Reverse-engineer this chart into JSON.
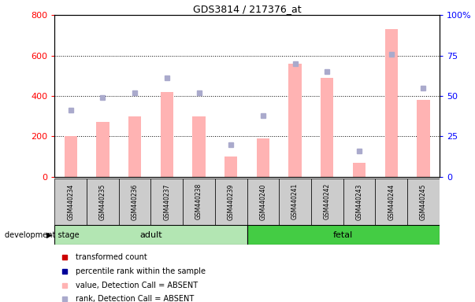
{
  "title": "GDS3814 / 217376_at",
  "samples": [
    "GSM440234",
    "GSM440235",
    "GSM440236",
    "GSM440237",
    "GSM440238",
    "GSM440239",
    "GSM440240",
    "GSM440241",
    "GSM440242",
    "GSM440243",
    "GSM440244",
    "GSM440245"
  ],
  "bar_values": [
    200,
    270,
    300,
    420,
    300,
    100,
    190,
    560,
    490,
    70,
    730,
    380
  ],
  "rank_values": [
    41,
    49,
    52,
    61,
    52,
    20,
    38,
    70,
    65,
    16,
    76,
    55
  ],
  "bar_color_absent": "#ffb3b3",
  "rank_color_absent": "#aaaacc",
  "adult_color": "#b3e6b3",
  "fetal_color": "#44cc44",
  "stage_label": "development stage",
  "ylim_left": [
    0,
    800
  ],
  "ylim_right": [
    0,
    100
  ],
  "yticks_left": [
    0,
    200,
    400,
    600,
    800
  ],
  "yticks_right": [
    0,
    25,
    50,
    75,
    100
  ],
  "yticklabels_left": [
    "0",
    "200",
    "400",
    "600",
    "800"
  ],
  "yticklabels_right": [
    "0",
    "25",
    "50",
    "75",
    "100%"
  ],
  "grid_values": [
    200,
    400,
    600
  ],
  "bar_width": 0.4,
  "legend_items": [
    {
      "label": "transformed count",
      "color": "#cc0000"
    },
    {
      "label": "percentile rank within the sample",
      "color": "#000099"
    },
    {
      "label": "value, Detection Call = ABSENT",
      "color": "#ffb3b3"
    },
    {
      "label": "rank, Detection Call = ABSENT",
      "color": "#aaaacc"
    }
  ],
  "n_adult": 6,
  "n_fetal": 6
}
